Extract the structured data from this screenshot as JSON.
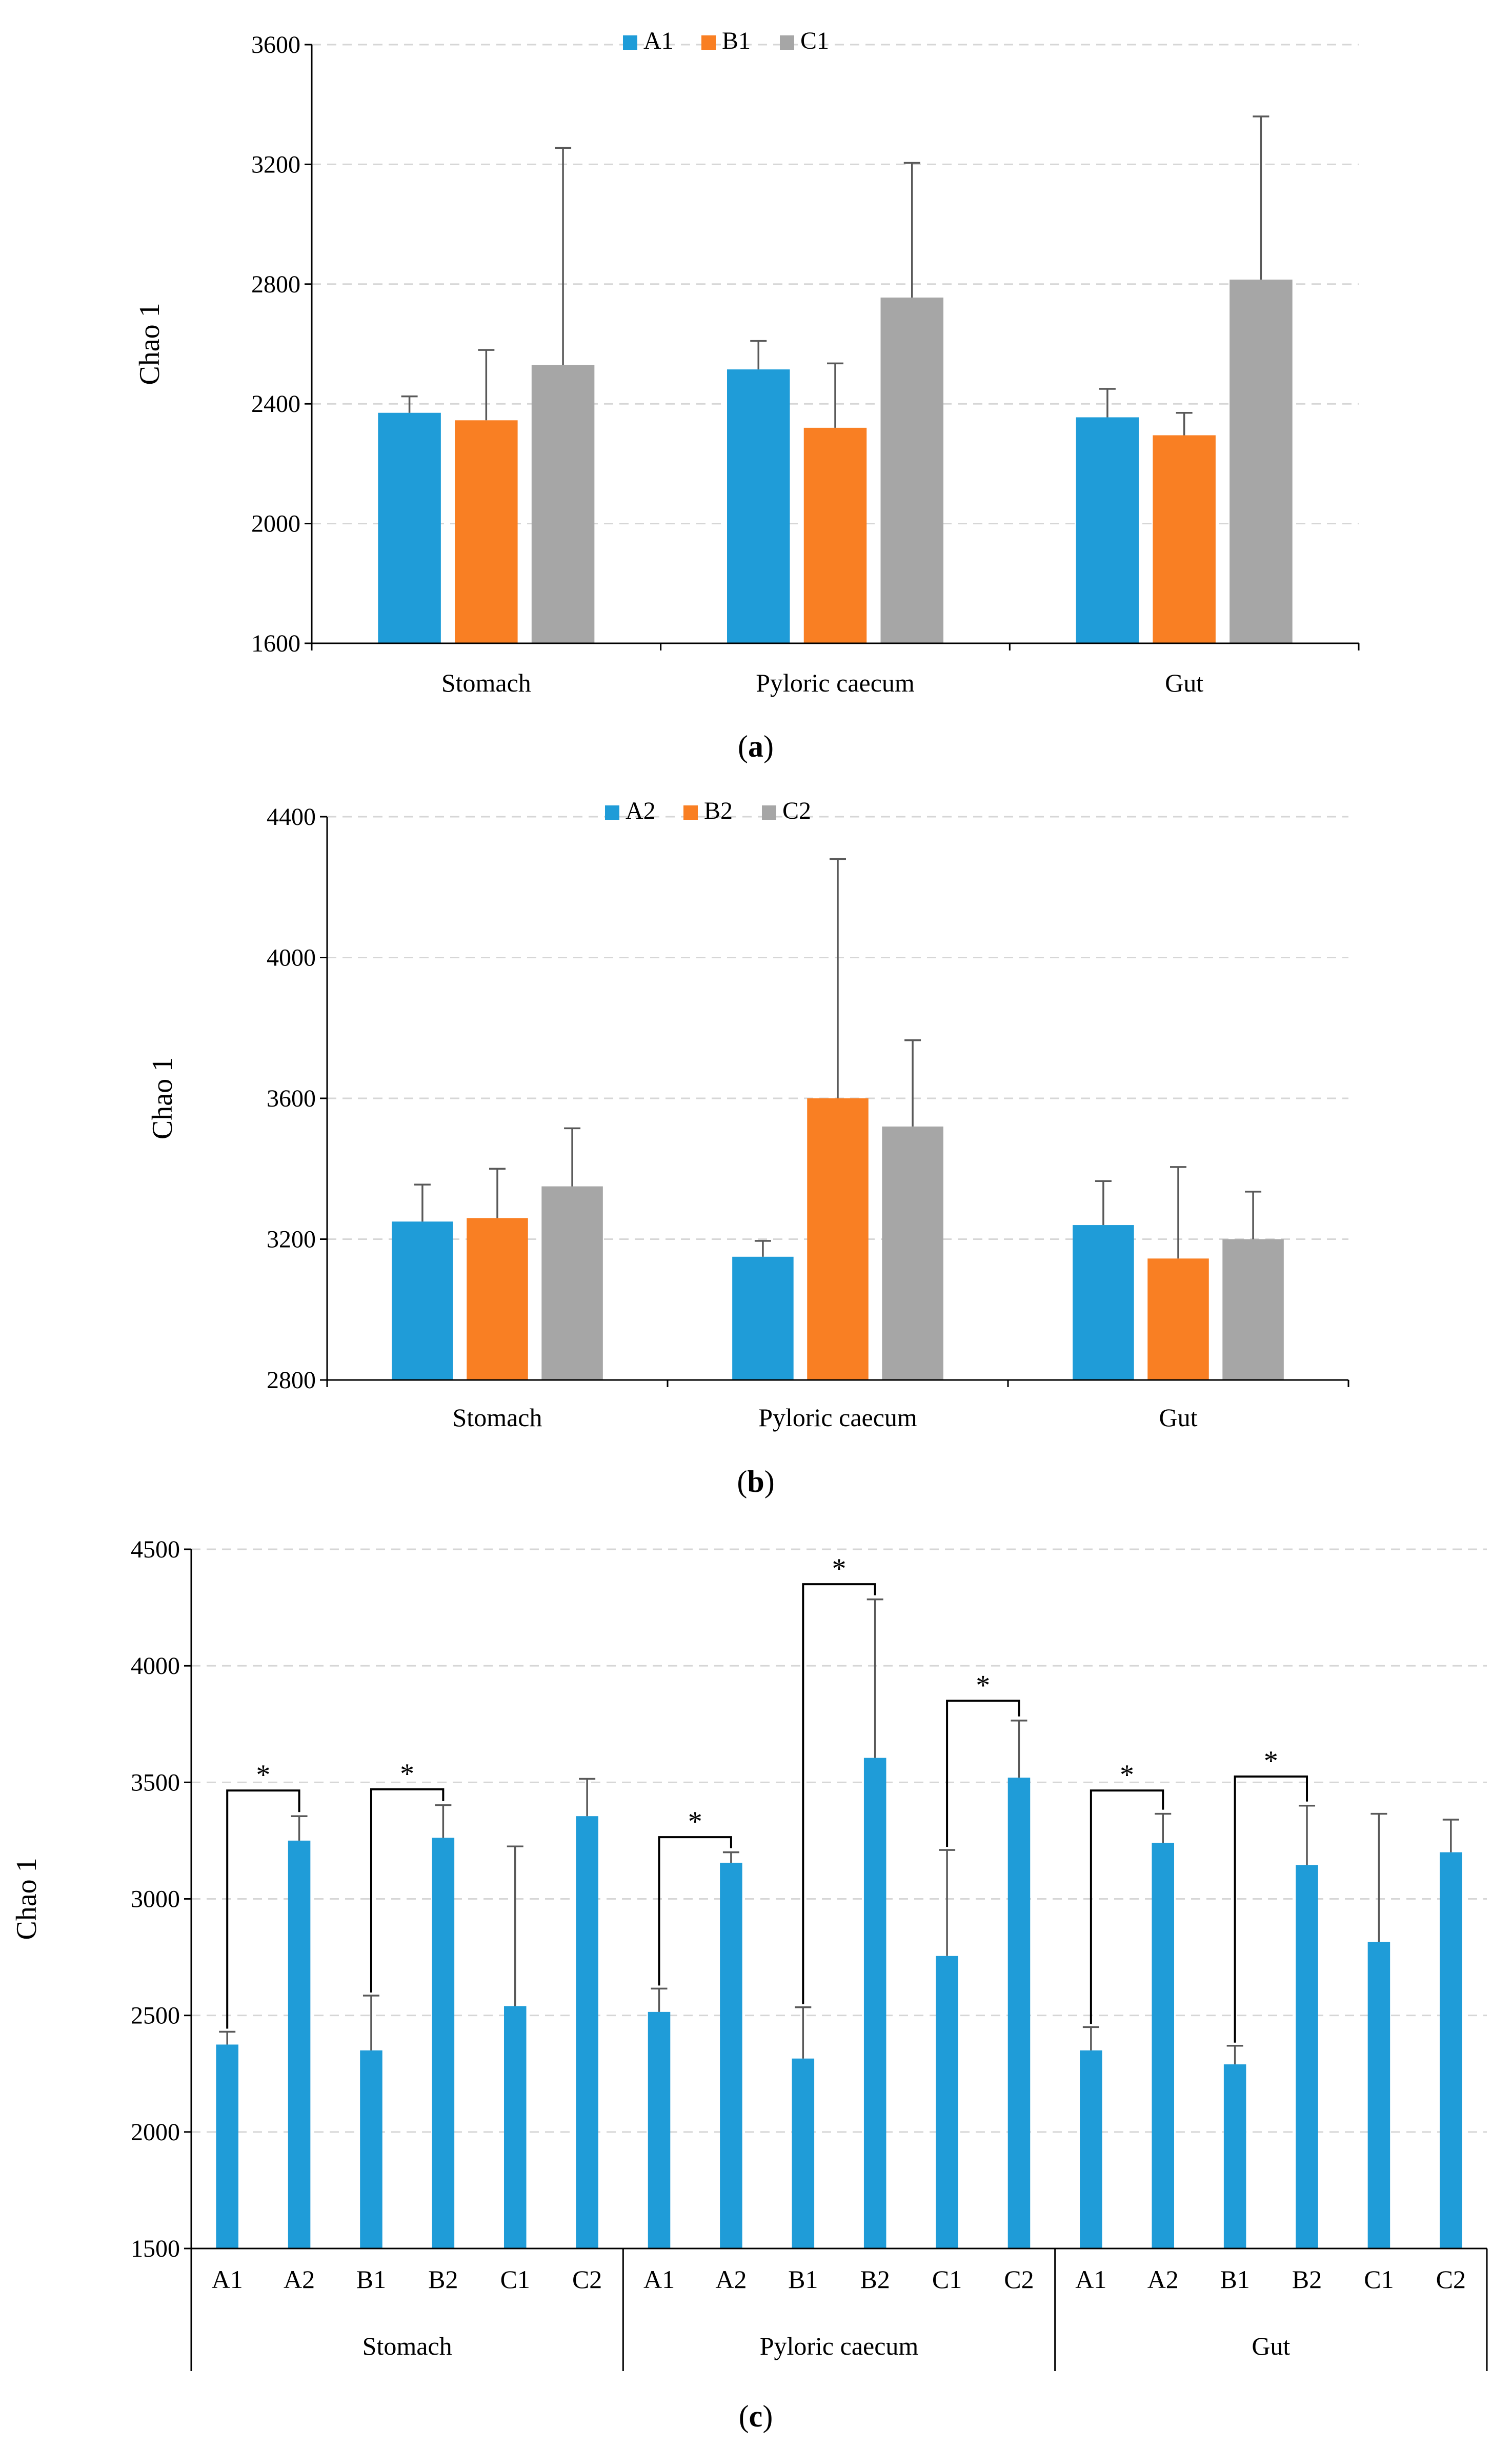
{
  "chart_data": [
    {
      "id": "a",
      "type": "bar",
      "panel_label": "a",
      "ylabel": "Chao 1",
      "ylim": [
        1600,
        3600
      ],
      "yticks": [
        1600,
        2000,
        2400,
        2800,
        3200,
        3600
      ],
      "categories": [
        "Stomach",
        "Pyloric caecum",
        "Gut"
      ],
      "series": [
        {
          "name": "A1",
          "color": "#1f9cd8",
          "values": [
            2370,
            2515,
            2355
          ],
          "errors": [
            55,
            95,
            95
          ]
        },
        {
          "name": "B1",
          "color": "#f97f23",
          "values": [
            2345,
            2320,
            2295
          ],
          "errors": [
            235,
            215,
            75
          ]
        },
        {
          "name": "C1",
          "color": "#a6a6a6",
          "values": [
            2530,
            2755,
            2815
          ],
          "errors": [
            725,
            450,
            545
          ]
        }
      ]
    },
    {
      "id": "b",
      "type": "bar",
      "panel_label": "b",
      "ylabel": "Chao 1",
      "ylim": [
        2800,
        4400
      ],
      "yticks": [
        2800,
        3200,
        3600,
        4000,
        4400
      ],
      "categories": [
        "Stomach",
        "Pyloric caecum",
        "Gut"
      ],
      "series": [
        {
          "name": "A2",
          "color": "#1f9cd8",
          "values": [
            3250,
            3150,
            3240
          ],
          "errors": [
            105,
            45,
            125
          ]
        },
        {
          "name": "B2",
          "color": "#f97f23",
          "values": [
            3260,
            3600,
            3145
          ],
          "errors": [
            140,
            680,
            260
          ]
        },
        {
          "name": "C2",
          "color": "#a6a6a6",
          "values": [
            3350,
            3520,
            3200
          ],
          "errors": [
            165,
            245,
            135
          ]
        }
      ]
    },
    {
      "id": "c",
      "type": "bar",
      "panel_label": "c",
      "ylabel": "Chao 1",
      "ylim": [
        1500,
        4500
      ],
      "yticks": [
        1500,
        2000,
        2500,
        3000,
        3500,
        4000,
        4500
      ],
      "color": "#1f9cd8",
      "groups": [
        {
          "name": "Stomach",
          "labels": [
            "A1",
            "A2",
            "B1",
            "B2",
            "C1",
            "C2"
          ],
          "values": [
            2375,
            3250,
            2350,
            3262,
            2540,
            3355
          ],
          "errors": [
            55,
            105,
            235,
            140,
            685,
            160
          ]
        },
        {
          "name": "Pyloric caecum",
          "labels": [
            "A1",
            "A2",
            "B1",
            "B2",
            "C1",
            "C2"
          ],
          "values": [
            2515,
            3155,
            2315,
            3605,
            2755,
            3520
          ],
          "errors": [
            100,
            45,
            220,
            680,
            455,
            245
          ]
        },
        {
          "name": "Gut",
          "labels": [
            "A1",
            "A2",
            "B1",
            "B2",
            "C1",
            "C2"
          ],
          "values": [
            2350,
            3240,
            2290,
            3145,
            2815,
            3200
          ],
          "errors": [
            100,
            125,
            80,
            255,
            550,
            140
          ]
        }
      ],
      "significance": [
        {
          "group": 0,
          "from": 0,
          "to": 1,
          "top": 3465,
          "label": "*"
        },
        {
          "group": 0,
          "from": 2,
          "to": 3,
          "top": 3470,
          "label": "*"
        },
        {
          "group": 1,
          "from": 0,
          "to": 1,
          "top": 3265,
          "label": "*"
        },
        {
          "group": 1,
          "from": 2,
          "to": 3,
          "top": 4350,
          "label": "*"
        },
        {
          "group": 1,
          "from": 4,
          "to": 5,
          "top": 3850,
          "label": "*"
        },
        {
          "group": 2,
          "from": 0,
          "to": 1,
          "top": 3465,
          "label": "*"
        },
        {
          "group": 2,
          "from": 2,
          "to": 3,
          "top": 3525,
          "label": "*"
        }
      ]
    }
  ]
}
